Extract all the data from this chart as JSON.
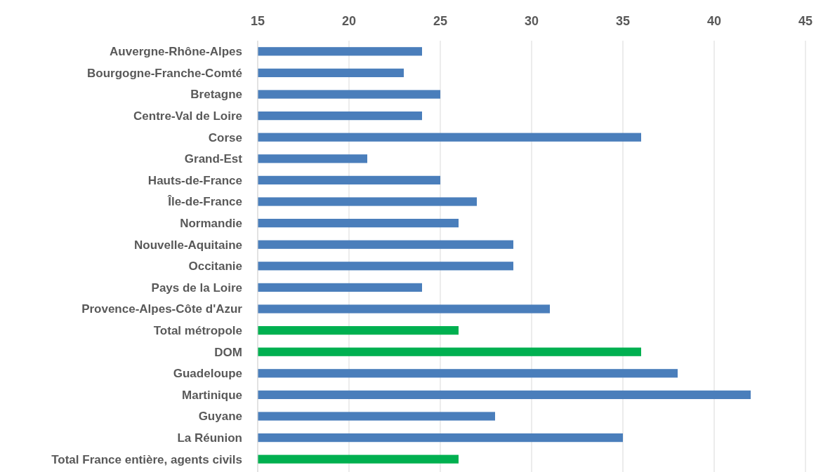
{
  "chart_data": {
    "type": "bar",
    "orientation": "horizontal",
    "categories": [
      "Auvergne-Rhône-Alpes",
      "Bourgogne-Franche-Comté",
      "Bretagne",
      "Centre-Val de Loire",
      "Corse",
      "Grand-Est",
      "Hauts-de-France",
      "Île-de-France",
      "Normandie",
      "Nouvelle-Aquitaine",
      "Occitanie",
      "Pays de la Loire",
      "Provence-Alpes-Côte d'Azur",
      "Total métropole",
      "DOM",
      "Guadeloupe",
      "Martinique",
      "Guyane",
      "La Réunion",
      "Total France entière, agents civils"
    ],
    "values": [
      24,
      23,
      25,
      24,
      36,
      21,
      25,
      27,
      26,
      29,
      29,
      24,
      31,
      26,
      36,
      38,
      42,
      28,
      35,
      26
    ],
    "colors": [
      "#4a7ebb",
      "#4a7ebb",
      "#4a7ebb",
      "#4a7ebb",
      "#4a7ebb",
      "#4a7ebb",
      "#4a7ebb",
      "#4a7ebb",
      "#4a7ebb",
      "#4a7ebb",
      "#4a7ebb",
      "#4a7ebb",
      "#4a7ebb",
      "#00b050",
      "#00b050",
      "#4a7ebb",
      "#4a7ebb",
      "#4a7ebb",
      "#4a7ebb",
      "#00b050"
    ],
    "xlim": [
      15,
      45
    ],
    "xticks": [
      15,
      20,
      25,
      30,
      35,
      40,
      45
    ],
    "grid": "x"
  }
}
